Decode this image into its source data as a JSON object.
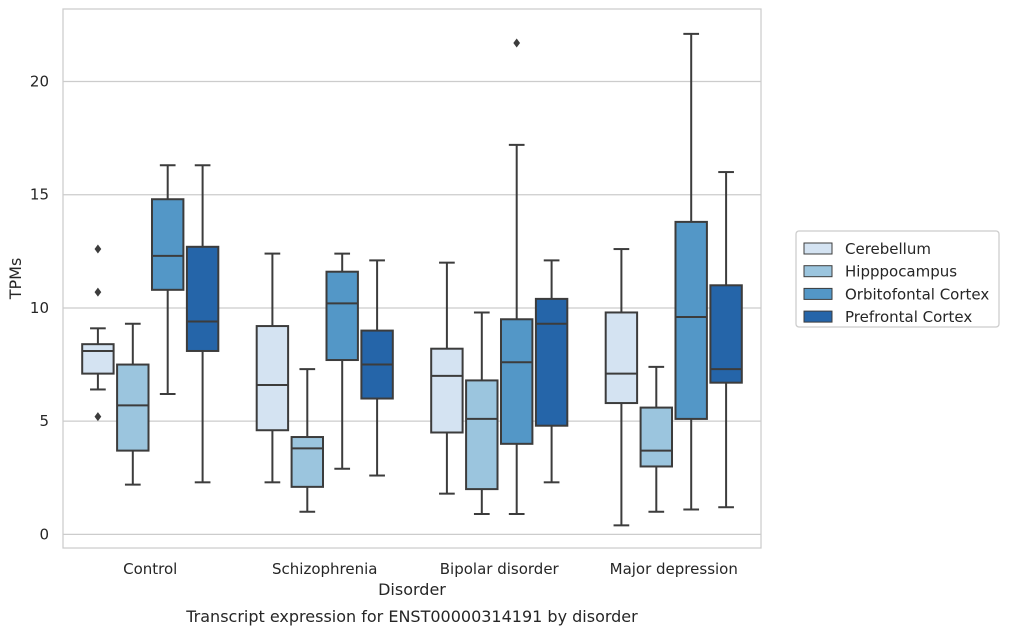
{
  "chart_data": {
    "type": "box",
    "caption": "Transcript expression for ENST00000314191 by disorder",
    "xlabel": "Disorder",
    "ylabel": "TPMs",
    "ylim": [
      -0.6,
      23.2
    ],
    "yticks": [
      0,
      5,
      10,
      15,
      20
    ],
    "grid": "horizontal",
    "legend_position": "right",
    "categories": [
      "Control",
      "Schizophrenia",
      "Bipolar disorder",
      "Major depression"
    ],
    "series": [
      {
        "name": "Cerebellum",
        "color": "#d4e3f2",
        "boxes": [
          {
            "whisker_low": 6.4,
            "q1": 7.1,
            "median": 8.1,
            "q3": 8.4,
            "whisker_high": 9.1,
            "outliers": [
              12.6,
              10.7,
              5.2
            ]
          },
          {
            "whisker_low": 2.3,
            "q1": 4.6,
            "median": 6.6,
            "q3": 9.2,
            "whisker_high": 12.4,
            "outliers": []
          },
          {
            "whisker_low": 1.8,
            "q1": 4.5,
            "median": 7.0,
            "q3": 8.2,
            "whisker_high": 12.0,
            "outliers": []
          },
          {
            "whisker_low": 0.4,
            "q1": 5.8,
            "median": 7.1,
            "q3": 9.8,
            "whisker_high": 12.6,
            "outliers": []
          }
        ]
      },
      {
        "name": "Hipppocampus",
        "color": "#9bc5de",
        "boxes": [
          {
            "whisker_low": 2.2,
            "q1": 3.7,
            "median": 5.7,
            "q3": 7.5,
            "whisker_high": 9.3,
            "outliers": []
          },
          {
            "whisker_low": 1.0,
            "q1": 2.1,
            "median": 3.8,
            "q3": 4.3,
            "whisker_high": 7.3,
            "outliers": []
          },
          {
            "whisker_low": 0.9,
            "q1": 2.0,
            "median": 5.1,
            "q3": 6.8,
            "whisker_high": 9.8,
            "outliers": []
          },
          {
            "whisker_low": 1.0,
            "q1": 3.0,
            "median": 3.7,
            "q3": 5.6,
            "whisker_high": 7.4,
            "outliers": []
          }
        ]
      },
      {
        "name": "Orbitofontal Cortex",
        "color": "#5397c7",
        "boxes": [
          {
            "whisker_low": 6.2,
            "q1": 10.8,
            "median": 12.3,
            "q3": 14.8,
            "whisker_high": 16.3,
            "outliers": []
          },
          {
            "whisker_low": 2.9,
            "q1": 7.7,
            "median": 10.2,
            "q3": 11.6,
            "whisker_high": 12.4,
            "outliers": []
          },
          {
            "whisker_low": 0.9,
            "q1": 4.0,
            "median": 7.6,
            "q3": 9.5,
            "whisker_high": 17.2,
            "outliers": [
              21.7
            ]
          },
          {
            "whisker_low": 1.1,
            "q1": 5.1,
            "median": 9.6,
            "q3": 13.8,
            "whisker_high": 22.1,
            "outliers": []
          }
        ]
      },
      {
        "name": "Prefrontal Cortex",
        "color": "#2565a9",
        "boxes": [
          {
            "whisker_low": 2.3,
            "q1": 8.1,
            "median": 9.4,
            "q3": 12.7,
            "whisker_high": 16.3,
            "outliers": []
          },
          {
            "whisker_low": 2.6,
            "q1": 6.0,
            "median": 7.5,
            "q3": 9.0,
            "whisker_high": 12.1,
            "outliers": []
          },
          {
            "whisker_low": 2.3,
            "q1": 4.8,
            "median": 9.3,
            "q3": 10.4,
            "whisker_high": 12.1,
            "outliers": []
          },
          {
            "whisker_low": 1.2,
            "q1": 6.7,
            "median": 7.3,
            "q3": 11.0,
            "whisker_high": 16.0,
            "outliers": []
          }
        ]
      }
    ]
  }
}
